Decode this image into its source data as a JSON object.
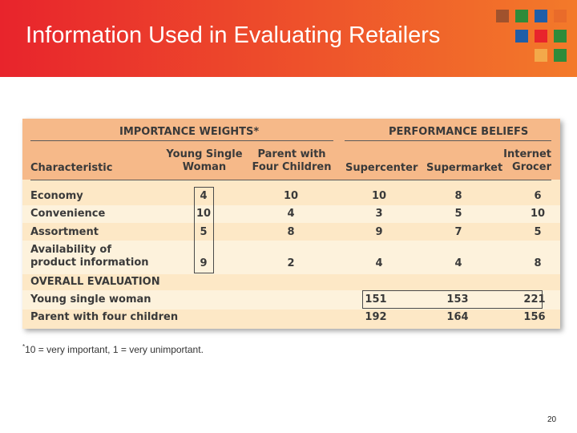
{
  "header": {
    "title": "Information Used in Evaluating Retailers"
  },
  "colors": {
    "header_start": "#e8242c",
    "header_end": "#f37a2a",
    "table_bg": "#fde8c6",
    "table_header_bg": "#f6b989",
    "table_band": "#fdf2dc"
  },
  "decor_squares": [
    "#a0522d",
    "#2e8b3a",
    "#1f5ea8",
    "#e96b2a",
    "#1f5ea8",
    "#e8242c",
    "#2e8b3a",
    "#f3a94a",
    "#2e8b3a"
  ],
  "table": {
    "group_importance": "IMPORTANCE WEIGHTS*",
    "group_performance": "PERFORMANCE BELIEFS",
    "col_characteristic": "Characteristic",
    "col_young_1": "Young Single",
    "col_young_2": "Woman",
    "col_parent_1": "Parent with",
    "col_parent_2": "Four Children",
    "col_supercenter": "Supercenter",
    "col_supermarket": "Supermarket",
    "col_internet_1": "Internet",
    "col_internet_2": "Grocer",
    "rows": [
      {
        "label": "Economy",
        "young": "4",
        "parent": "10",
        "supercenter": "10",
        "supermarket": "8",
        "internet": "6"
      },
      {
        "label": "Convenience",
        "young": "10",
        "parent": "4",
        "supercenter": "3",
        "supermarket": "5",
        "internet": "10"
      },
      {
        "label": "Assortment",
        "young": "5",
        "parent": "8",
        "supercenter": "9",
        "supermarket": "7",
        "internet": "5"
      },
      {
        "label_1": "Availability of",
        "label_2": "product information",
        "young": "9",
        "parent": "2",
        "supercenter": "4",
        "supermarket": "4",
        "internet": "8"
      }
    ],
    "overall_label": "OVERALL EVALUATION",
    "overall_rows": [
      {
        "label": "Young single woman",
        "supercenter": "151",
        "supermarket": "153",
        "internet": "221"
      },
      {
        "label": "Parent with four children",
        "supercenter": "192",
        "supermarket": "164",
        "internet": "156"
      }
    ]
  },
  "footnote": {
    "marker": "*",
    "text": "10 = very important, 1 = very unimportant."
  },
  "page_number": "20"
}
